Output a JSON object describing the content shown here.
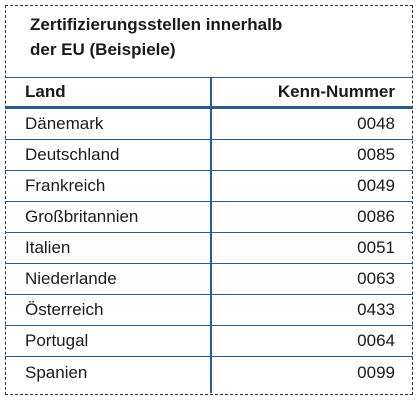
{
  "title": {
    "line1": "Zertifizierungsstellen innerhalb",
    "line2": "der EU (Beispiele)"
  },
  "table": {
    "headers": {
      "land": "Land",
      "kenn_nummer": "Kenn-Nummer"
    },
    "rows": [
      {
        "land": "Dänemark",
        "nummer": "0048"
      },
      {
        "land": "Deutschland",
        "nummer": "0085"
      },
      {
        "land": "Frankreich",
        "nummer": "0049"
      },
      {
        "land": "Großbritannien",
        "nummer": "0086"
      },
      {
        "land": "Italien",
        "nummer": "0051"
      },
      {
        "land": "Niederlande",
        "nummer": "0063"
      },
      {
        "land": "Österreich",
        "nummer": "0433"
      },
      {
        "land": "Portugal",
        "nummer": "0064"
      },
      {
        "land": "Spanien",
        "nummer": "0099"
      }
    ]
  },
  "colors": {
    "rule": "#2c5a8a",
    "border": "#333333",
    "text": "#1a1a1a"
  }
}
